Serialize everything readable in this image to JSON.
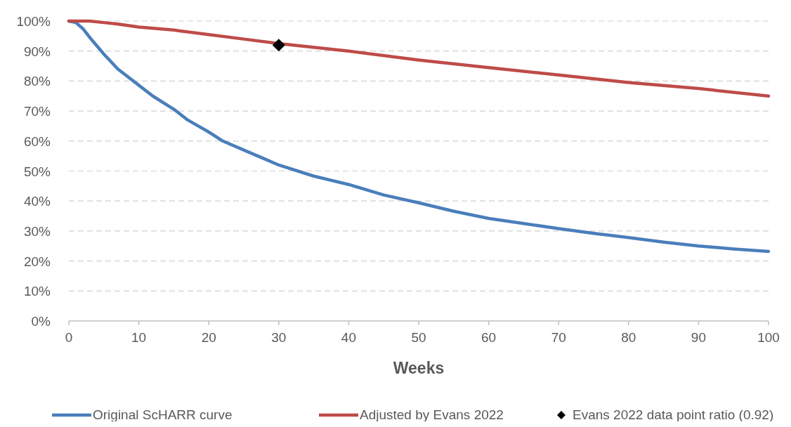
{
  "chart_data": {
    "type": "line",
    "xlabel": "Weeks",
    "xlim": [
      0,
      100
    ],
    "xticks": [
      0,
      10,
      20,
      30,
      40,
      50,
      60,
      70,
      80,
      90,
      100
    ],
    "ylim": [
      0,
      100
    ],
    "yticks": [
      {
        "value": 0,
        "label": "0%"
      },
      {
        "value": 10,
        "label": "10%"
      },
      {
        "value": 20,
        "label": "20%"
      },
      {
        "value": 30,
        "label": "30%"
      },
      {
        "value": 40,
        "label": "40%"
      },
      {
        "value": 50,
        "label": "50%"
      },
      {
        "value": 60,
        "label": "60%"
      },
      {
        "value": 70,
        "label": "70%"
      },
      {
        "value": 80,
        "label": "80%"
      },
      {
        "value": 90,
        "label": "90%"
      },
      {
        "value": 100,
        "label": "100%"
      }
    ],
    "grid": "y",
    "legend": "bottom",
    "series": [
      {
        "name": "Original ScHARR curve",
        "color": "#4a7ebb",
        "x": [
          0,
          1,
          2,
          3,
          5,
          7,
          10,
          12,
          15,
          17,
          20,
          22,
          25,
          28,
          30,
          35,
          40,
          45,
          50,
          55,
          60,
          65,
          70,
          75,
          80,
          85,
          90,
          95,
          100
        ],
        "values": [
          100,
          99.5,
          97.5,
          94.5,
          89,
          84,
          78.6,
          75,
          70.6,
          67,
          63,
          60,
          57,
          54,
          52,
          48.3,
          45.5,
          42,
          39.4,
          36.6,
          34.2,
          32.5,
          30.8,
          29.2,
          27.8,
          26.3,
          25,
          24,
          23.2
        ]
      },
      {
        "name": "Adjusted by Evans 2022",
        "color": "#be4b48",
        "x": [
          0,
          3,
          5,
          7,
          10,
          15,
          20,
          25,
          30,
          40,
          50,
          60,
          70,
          80,
          90,
          100
        ],
        "values": [
          100,
          100,
          99.5,
          99,
          98,
          97,
          95.5,
          94,
          92.5,
          90,
          87,
          84.5,
          82,
          79.5,
          77.5,
          75
        ]
      },
      {
        "name": "Evans 2022 data point ratio (0.92)",
        "type": "scatter",
        "marker": "diamond",
        "color": "#000000",
        "x": [
          30
        ],
        "values": [
          92
        ]
      }
    ]
  }
}
